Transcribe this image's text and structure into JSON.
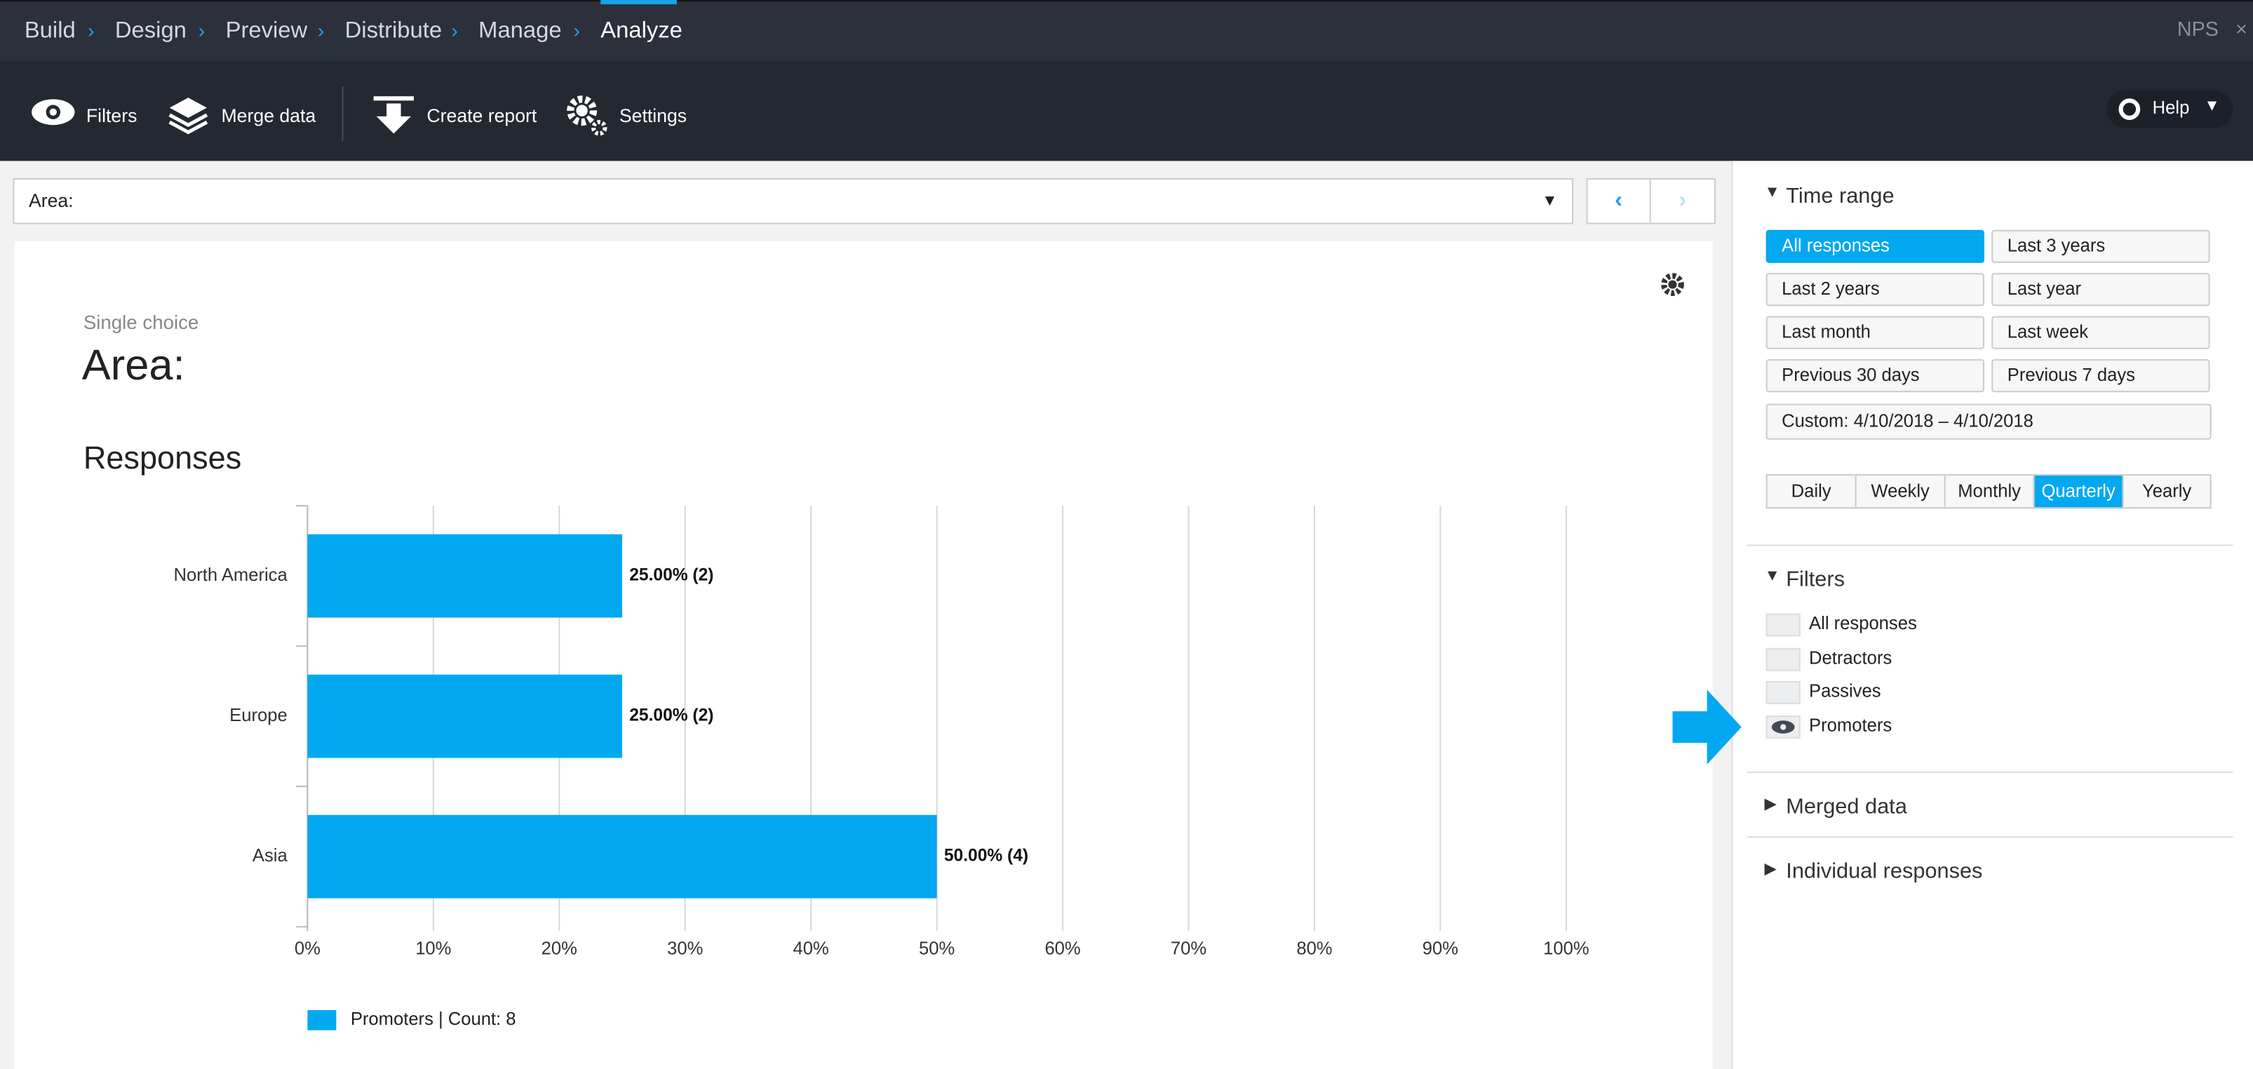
{
  "nav": {
    "steps": [
      "Build",
      "Design",
      "Preview",
      "Distribute",
      "Manage",
      "Analyze"
    ],
    "survey": "NPS"
  },
  "toolbar": {
    "items": [
      "Filters",
      "Merge data",
      "Create report",
      "Settings"
    ],
    "help": "Help"
  },
  "dropdown": "Area:",
  "question": {
    "type": "Single choice",
    "title": "Area:",
    "section": "Responses"
  },
  "chart_data": {
    "type": "bar",
    "orientation": "horizontal",
    "categories": [
      "North America",
      "Europe",
      "Asia"
    ],
    "series": [
      {
        "name": "Promoters | Count: 8",
        "color": "#03a9f0",
        "values": [
          25,
          25,
          50
        ],
        "value_labels": [
          "25.00% (2)",
          "25.00% (2)",
          "50.00% (4)"
        ]
      }
    ],
    "xlim": [
      0,
      100
    ],
    "xticks": [
      {
        "value": 0,
        "label": "0%"
      },
      {
        "value": 10,
        "label": "10%"
      },
      {
        "value": 20,
        "label": "20%"
      },
      {
        "value": 30,
        "label": "30%"
      },
      {
        "value": 40,
        "label": "40%"
      },
      {
        "value": 50,
        "label": "50%"
      },
      {
        "value": 60,
        "label": "60%"
      },
      {
        "value": 70,
        "label": "70%"
      },
      {
        "value": 80,
        "label": "80%"
      },
      {
        "value": 90,
        "label": "90%"
      },
      {
        "value": 100,
        "label": "100%"
      }
    ],
    "grid": true,
    "legend": "bottom-left"
  },
  "sidebar": {
    "time_range": {
      "title": "Time range",
      "options": [
        "All responses",
        "Last 3 years",
        "Last 2 years",
        "Last year",
        "Last month",
        "Last week",
        "Previous 30 days",
        "Previous 7 days"
      ],
      "custom": "Custom: 4/10/2018 – 4/10/2018",
      "intervals": [
        "Daily",
        "Weekly",
        "Monthly",
        "Quarterly",
        "Yearly"
      ]
    },
    "filters": {
      "title": "Filters",
      "options": [
        "All responses",
        "Detractors",
        "Passives",
        "Promoters"
      ]
    },
    "sections": [
      "Merged data",
      "Individual responses"
    ]
  }
}
